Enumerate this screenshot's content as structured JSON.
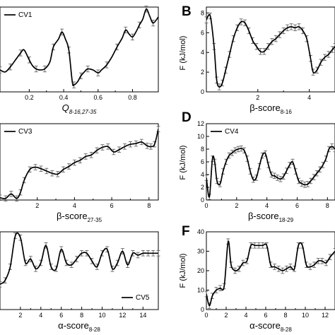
{
  "chart_data": [
    {
      "type": "line",
      "panel_letter": "",
      "legend": "CV1",
      "legend_pos": "top-left",
      "xlabel_main": "Q",
      "xlabel_sub": "8-16,27-35",
      "xlabel_italic": true,
      "ylabel": "",
      "xlim": [
        0.03,
        0.95
      ],
      "ylim": [
        0,
        8.5
      ],
      "xticks": [
        0.2,
        0.4,
        0.6,
        0.8
      ],
      "xtick_labels": [
        "0.2",
        "0.4",
        "0.6",
        "0.8"
      ],
      "yticks": [],
      "ytick_labels": [],
      "x": [
        0.03,
        0.06,
        0.09,
        0.12,
        0.15,
        0.17,
        0.2,
        0.22,
        0.24,
        0.26,
        0.29,
        0.32,
        0.34,
        0.37,
        0.39,
        0.41,
        0.43,
        0.45,
        0.46,
        0.48,
        0.5,
        0.52,
        0.54,
        0.57,
        0.6,
        0.62,
        0.65,
        0.68,
        0.71,
        0.74,
        0.76,
        0.78,
        0.8,
        0.82,
        0.84,
        0.86,
        0.88,
        0.9,
        0.92,
        0.95
      ],
      "y": [
        2.2,
        2.0,
        2.5,
        3.2,
        3.9,
        4.2,
        3.2,
        2.6,
        2.3,
        2.2,
        2.3,
        3.0,
        4.5,
        5.3,
        6.0,
        5.3,
        4.2,
        1.0,
        0.7,
        1.0,
        1.6,
        2.0,
        2.3,
        2.2,
        1.9,
        2.2,
        2.7,
        3.5,
        4.5,
        5.4,
        6.2,
        5.8,
        5.5,
        6.0,
        6.7,
        7.3,
        8.3,
        7.6,
        6.9,
        7.5
      ],
      "errbar_step": 2
    },
    {
      "type": "line",
      "panel_letter": "B",
      "legend": "",
      "legend_pos": "top-right",
      "xlabel_main": "β-score",
      "xlabel_sub": "8-16",
      "xlabel_italic": false,
      "ylabel": "F (kJ/mol)",
      "xlim": [
        0.0,
        5.0
      ],
      "ylim": [
        0,
        8.6
      ],
      "xticks": [
        2,
        4
      ],
      "xtick_labels": [
        "2",
        "4"
      ],
      "yticks": [
        0,
        2,
        4,
        6,
        8
      ],
      "ytick_labels": [
        "0",
        "2",
        "4",
        "6",
        "8"
      ],
      "x": [
        0.0,
        0.15,
        0.3,
        0.4,
        0.5,
        0.62,
        0.75,
        0.9,
        1.05,
        1.2,
        1.35,
        1.5,
        1.65,
        1.8,
        1.95,
        2.1,
        2.25,
        2.4,
        2.55,
        2.7,
        2.85,
        3.0,
        3.15,
        3.3,
        3.45,
        3.6,
        3.75,
        3.9,
        4.05,
        4.15,
        4.3,
        4.45,
        4.6,
        4.75,
        4.9,
        5.0
      ],
      "y": [
        7.3,
        7.7,
        4.6,
        1.2,
        0.5,
        0.9,
        2.2,
        3.8,
        5.4,
        6.5,
        7.1,
        7.0,
        6.2,
        5.2,
        4.6,
        4.1,
        4.1,
        4.6,
        5.1,
        5.4,
        5.8,
        6.2,
        6.5,
        6.6,
        6.5,
        6.6,
        6.2,
        5.4,
        3.4,
        2.0,
        2.2,
        3.0,
        3.5,
        3.8,
        4.3,
        4.6
      ],
      "errbar_step": 1
    },
    {
      "type": "line",
      "panel_letter": "",
      "legend": "CV3",
      "legend_pos": "top-left",
      "xlabel_main": "β-score",
      "xlabel_sub": "27-35",
      "xlabel_italic": false,
      "ylabel": "",
      "xlim": [
        0.0,
        8.5
      ],
      "ylim": [
        0,
        10
      ],
      "xticks": [
        2,
        4,
        6,
        8
      ],
      "xtick_labels": [
        "2",
        "4",
        "6",
        "8"
      ],
      "yticks": [],
      "ytick_labels": [],
      "x": [
        0.0,
        0.3,
        0.6,
        0.9,
        1.1,
        1.3,
        1.6,
        1.9,
        2.2,
        2.5,
        2.8,
        3.1,
        3.4,
        3.7,
        4.0,
        4.3,
        4.6,
        4.9,
        5.2,
        5.5,
        5.8,
        6.1,
        6.4,
        6.7,
        7.0,
        7.3,
        7.6,
        7.9,
        8.1,
        8.3,
        8.5
      ],
      "y": [
        0.3,
        0.2,
        0.8,
        0.2,
        1.0,
        2.6,
        4.0,
        4.3,
        4.1,
        3.8,
        3.5,
        3.4,
        4.0,
        4.4,
        4.9,
        5.2,
        5.7,
        5.9,
        6.5,
        6.9,
        7.0,
        6.3,
        6.6,
        7.0,
        7.3,
        7.4,
        7.6,
        7.1,
        7.0,
        7.3,
        9.3
      ],
      "errbar_step": 1
    },
    {
      "type": "line",
      "panel_letter": "D",
      "legend": "CV4",
      "legend_pos": "top-left",
      "xlabel_main": "β-score",
      "xlabel_sub": "18-29",
      "xlabel_italic": false,
      "ylabel": "F (kJ/mol)",
      "xlim": [
        0.0,
        8.5
      ],
      "ylim": [
        0,
        12
      ],
      "xticks": [
        0,
        2,
        4,
        6,
        8
      ],
      "xtick_labels": [
        "0",
        "2",
        "4",
        "6",
        "8"
      ],
      "yticks": [
        0,
        2,
        4,
        6,
        8,
        10,
        12
      ],
      "ytick_labels": [
        "0",
        "2",
        "4",
        "6",
        "8",
        "10",
        "12"
      ],
      "x": [
        0.0,
        0.2,
        0.4,
        0.55,
        0.7,
        0.9,
        1.1,
        1.3,
        1.5,
        1.7,
        1.9,
        2.1,
        2.3,
        2.5,
        2.7,
        2.9,
        3.1,
        3.3,
        3.5,
        3.7,
        3.9,
        4.1,
        4.3,
        4.5,
        4.7,
        4.9,
        5.1,
        5.3,
        5.5,
        5.7,
        5.9,
        6.1,
        6.3,
        6.5,
        6.7,
        6.9,
        7.1,
        7.3,
        7.5,
        7.7,
        7.9,
        8.1,
        8.3,
        8.5
      ],
      "y": [
        3.5,
        0.5,
        6.5,
        6.0,
        3.0,
        2.5,
        4.5,
        6.0,
        7.0,
        7.4,
        7.8,
        8.0,
        8.1,
        7.8,
        6.5,
        4.5,
        3.2,
        3.5,
        5.3,
        7.0,
        7.3,
        5.5,
        4.0,
        3.8,
        3.5,
        3.3,
        3.7,
        4.6,
        5.5,
        6.0,
        4.5,
        3.0,
        2.6,
        2.4,
        2.5,
        3.0,
        3.6,
        4.2,
        4.8,
        5.5,
        6.5,
        8.0,
        8.4,
        8.0
      ],
      "errbar_step": 1
    },
    {
      "type": "line",
      "panel_letter": "",
      "legend": "CV5",
      "legend_pos": "bottom-right",
      "xlabel_main": "α-score",
      "xlabel_sub": "8-28",
      "xlabel_italic": false,
      "ylabel": "",
      "xlim": [
        0.0,
        15.5
      ],
      "ylim": [
        0,
        40
      ],
      "xticks": [
        2,
        4,
        6,
        8,
        10,
        12,
        14
      ],
      "xtick_labels": [
        "2",
        "4",
        "6",
        "8",
        "10",
        "12",
        "14"
      ],
      "yticks": [],
      "ytick_labels": [],
      "x": [
        0.0,
        0.5,
        1.0,
        1.5,
        2.0,
        2.5,
        3.0,
        3.5,
        4.0,
        4.5,
        5.0,
        5.5,
        6.0,
        6.5,
        7.0,
        7.5,
        8.0,
        8.5,
        9.0,
        9.5,
        10.0,
        10.5,
        11.0,
        11.5,
        12.0,
        12.5,
        13.0,
        13.5,
        14.0,
        14.5,
        15.0,
        15.5
      ],
      "y": [
        13.0,
        15.0,
        22.0,
        38.0,
        37.0,
        24.0,
        26.0,
        21.0,
        24.0,
        33.0,
        22.0,
        21.0,
        31.0,
        24.0,
        23.0,
        26.0,
        29.0,
        29.0,
        25.0,
        22.0,
        29.0,
        31.0,
        21.0,
        24.0,
        30.0,
        23.0,
        29.0,
        28.0,
        29.0,
        29.0,
        29.0,
        29.0
      ],
      "errbar_step": 1
    },
    {
      "type": "line",
      "panel_letter": "F",
      "legend": "",
      "legend_pos": "bottom-right",
      "xlabel_main": "α-score",
      "xlabel_sub": "8-28",
      "xlabel_italic": false,
      "ylabel": "F (kJ/mol)",
      "xlim": [
        0.0,
        13.0
      ],
      "ylim": [
        0,
        40
      ],
      "xticks": [
        0,
        2,
        4,
        6,
        8,
        10,
        12
      ],
      "xtick_labels": [
        "0",
        "2",
        "4",
        "6",
        "8",
        "10",
        "12"
      ],
      "yticks": [
        0,
        10,
        20,
        30,
        40
      ],
      "ytick_labels": [
        "0",
        "10",
        "20",
        "30",
        "40"
      ],
      "x": [
        0.0,
        0.3,
        0.6,
        1.0,
        1.4,
        1.8,
        2.2,
        2.5,
        2.9,
        3.3,
        3.7,
        4.1,
        4.5,
        4.9,
        5.3,
        5.7,
        6.1,
        6.5,
        6.9,
        7.3,
        7.7,
        8.1,
        8.5,
        8.9,
        9.3,
        9.7,
        10.1,
        10.5,
        10.9,
        11.3,
        11.7,
        12.1,
        12.5,
        13.0
      ],
      "y": [
        8.0,
        2.0,
        7.0,
        10.0,
        11.0,
        12.0,
        35.0,
        23.0,
        20.0,
        21.0,
        24.0,
        25.0,
        33.0,
        33.0,
        33.0,
        33.0,
        33.0,
        23.0,
        22.0,
        21.0,
        20.0,
        21.0,
        22.0,
        21.0,
        33.0,
        33.0,
        23.0,
        22.0,
        23.0,
        25.0,
        25.0,
        24.0,
        27.0,
        30.0
      ],
      "errbar_step": 1
    }
  ]
}
